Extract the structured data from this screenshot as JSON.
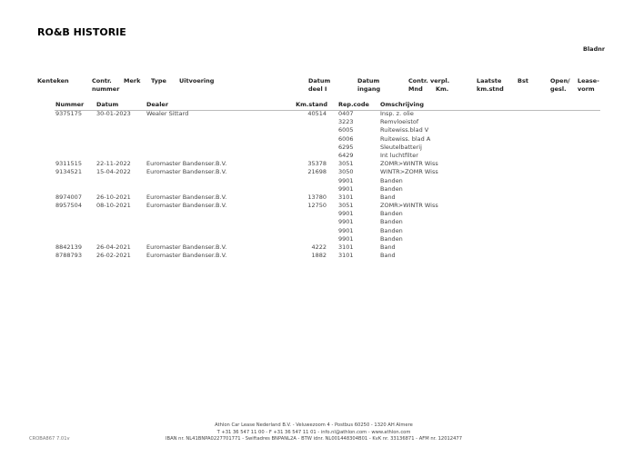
{
  "title": "RO&B HISTORIE",
  "bladnr": "Bladnr",
  "header1": {
    "kenteken": "Kenteken",
    "contr": "Contr.",
    "contr2": "nummer",
    "merk": "Merk",
    "type": "Type",
    "uitvoering": "Uitvoering",
    "datum_deel": "Datum",
    "datum_deel2": "deel I",
    "datum_ingang": "Datum",
    "datum_ingang2": "ingang",
    "contr_mnd": "Contr.",
    "contr_mnd2": "Mnd",
    "verpl": "verpl.",
    "verpl2": "Km.",
    "laatste": "Laatste",
    "laatste2": "km.stnd",
    "bst": "Bst",
    "open": "Open/",
    "open2": "gesl.",
    "lease": "Lease-",
    "lease2": "vorm"
  },
  "header2": {
    "nummer": "Nummer",
    "datum": "Datum",
    "dealer": "Dealer",
    "kmstand": "Km.stand",
    "repcode": "Rep.code",
    "omschrijving": "Omschrijving"
  },
  "rows": [
    {
      "nummer": "9375175",
      "datum": "30-01-2023",
      "dealer": "Wealer Sittard",
      "km": "40514",
      "code": "0407",
      "omschr": "Insp. z. olie"
    },
    {
      "nummer": "",
      "datum": "",
      "dealer": "",
      "km": "",
      "code": "3223",
      "omschr": "Remvloeistof"
    },
    {
      "nummer": "",
      "datum": "",
      "dealer": "",
      "km": "",
      "code": "6005",
      "omschr": "Ruitewiss.blad V"
    },
    {
      "nummer": "",
      "datum": "",
      "dealer": "",
      "km": "",
      "code": "6006",
      "omschr": "Ruitewiss. blad A"
    },
    {
      "nummer": "",
      "datum": "",
      "dealer": "",
      "km": "",
      "code": "6295",
      "omschr": "Sleutelbatterij"
    },
    {
      "nummer": "",
      "datum": "",
      "dealer": "",
      "km": "",
      "code": "6429",
      "omschr": "Int luchtfilter"
    },
    {
      "nummer": "9311515",
      "datum": "22-11-2022",
      "dealer": "Euromaster Bandenser.B.V.",
      "km": "35378",
      "code": "3051",
      "omschr": "ZOMR>WINTR Wiss"
    },
    {
      "nummer": "9134521",
      "datum": "15-04-2022",
      "dealer": "Euromaster Bandenser.B.V.",
      "km": "21698",
      "code": "3050",
      "omschr": "WINTR>ZOMR Wiss"
    },
    {
      "nummer": "",
      "datum": "",
      "dealer": "",
      "km": "",
      "code": "9901",
      "omschr": "Banden"
    },
    {
      "nummer": "",
      "datum": "",
      "dealer": "",
      "km": "",
      "code": "9901",
      "omschr": "Banden"
    },
    {
      "nummer": "8974007",
      "datum": "26-10-2021",
      "dealer": "Euromaster Bandenser.B.V.",
      "km": "13780",
      "code": "3101",
      "omschr": "Band"
    },
    {
      "nummer": "8957504",
      "datum": "08-10-2021",
      "dealer": "Euromaster Bandenser.B.V.",
      "km": "12750",
      "code": "3051",
      "omschr": "ZOMR>WINTR Wiss"
    },
    {
      "nummer": "",
      "datum": "",
      "dealer": "",
      "km": "",
      "code": "9901",
      "omschr": "Banden"
    },
    {
      "nummer": "",
      "datum": "",
      "dealer": "",
      "km": "",
      "code": "9901",
      "omschr": "Banden"
    },
    {
      "nummer": "",
      "datum": "",
      "dealer": "",
      "km": "",
      "code": "9901",
      "omschr": "Banden"
    },
    {
      "nummer": "",
      "datum": "",
      "dealer": "",
      "km": "",
      "code": "9901",
      "omschr": "Banden"
    },
    {
      "nummer": "8842139",
      "datum": "26-04-2021",
      "dealer": "Euromaster Bandenser.B.V.",
      "km": "4222",
      "code": "3101",
      "omschr": "Band"
    },
    {
      "nummer": "8788793",
      "datum": "26-02-2021",
      "dealer": "Euromaster Bandenser.B.V.",
      "km": "1882",
      "code": "3101",
      "omschr": "Band"
    }
  ],
  "footer": {
    "line1": "Athlon Car Lease Nederland B.V. - Veluwezoom 4 - Postbus 60250 - 1320 AH  Almere",
    "line2": "T +31 36 547 11 00 - F +31 36 547 11 01 - info.nl@athlon.com - www.athlon.com",
    "line3": "IBAN nr. NL41BNPA0227701771 - Swiftadres BNPANL2A - BTW idnr. NL001448304B01 - KvK nr. 33136871 - AFM nr. 12012477",
    "code": "CROBA867 7.01v"
  }
}
